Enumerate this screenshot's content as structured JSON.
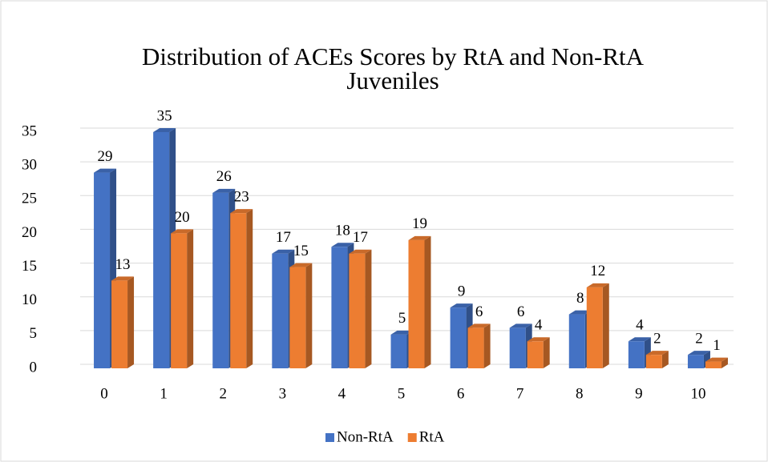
{
  "chart_data": {
    "type": "bar3d",
    "title": "Distribution of ACEs Scores by RtA and Non-RtA Juveniles",
    "categories": [
      "0",
      "1",
      "2",
      "3",
      "4",
      "5",
      "6",
      "7",
      "8",
      "9",
      "10"
    ],
    "series": [
      {
        "name": "Non-RtA",
        "color": "#4472c4",
        "values": [
          29,
          35,
          26,
          17,
          18,
          5,
          9,
          6,
          8,
          4,
          2
        ]
      },
      {
        "name": "RtA",
        "color": "#ed7d31",
        "values": [
          13,
          20,
          23,
          15,
          17,
          19,
          6,
          4,
          12,
          2,
          1
        ]
      }
    ],
    "ylim": [
      0,
      35
    ],
    "yticks": [
      0,
      5,
      10,
      15,
      20,
      25,
      30,
      35
    ],
    "grid": true,
    "legend": "bottom"
  }
}
